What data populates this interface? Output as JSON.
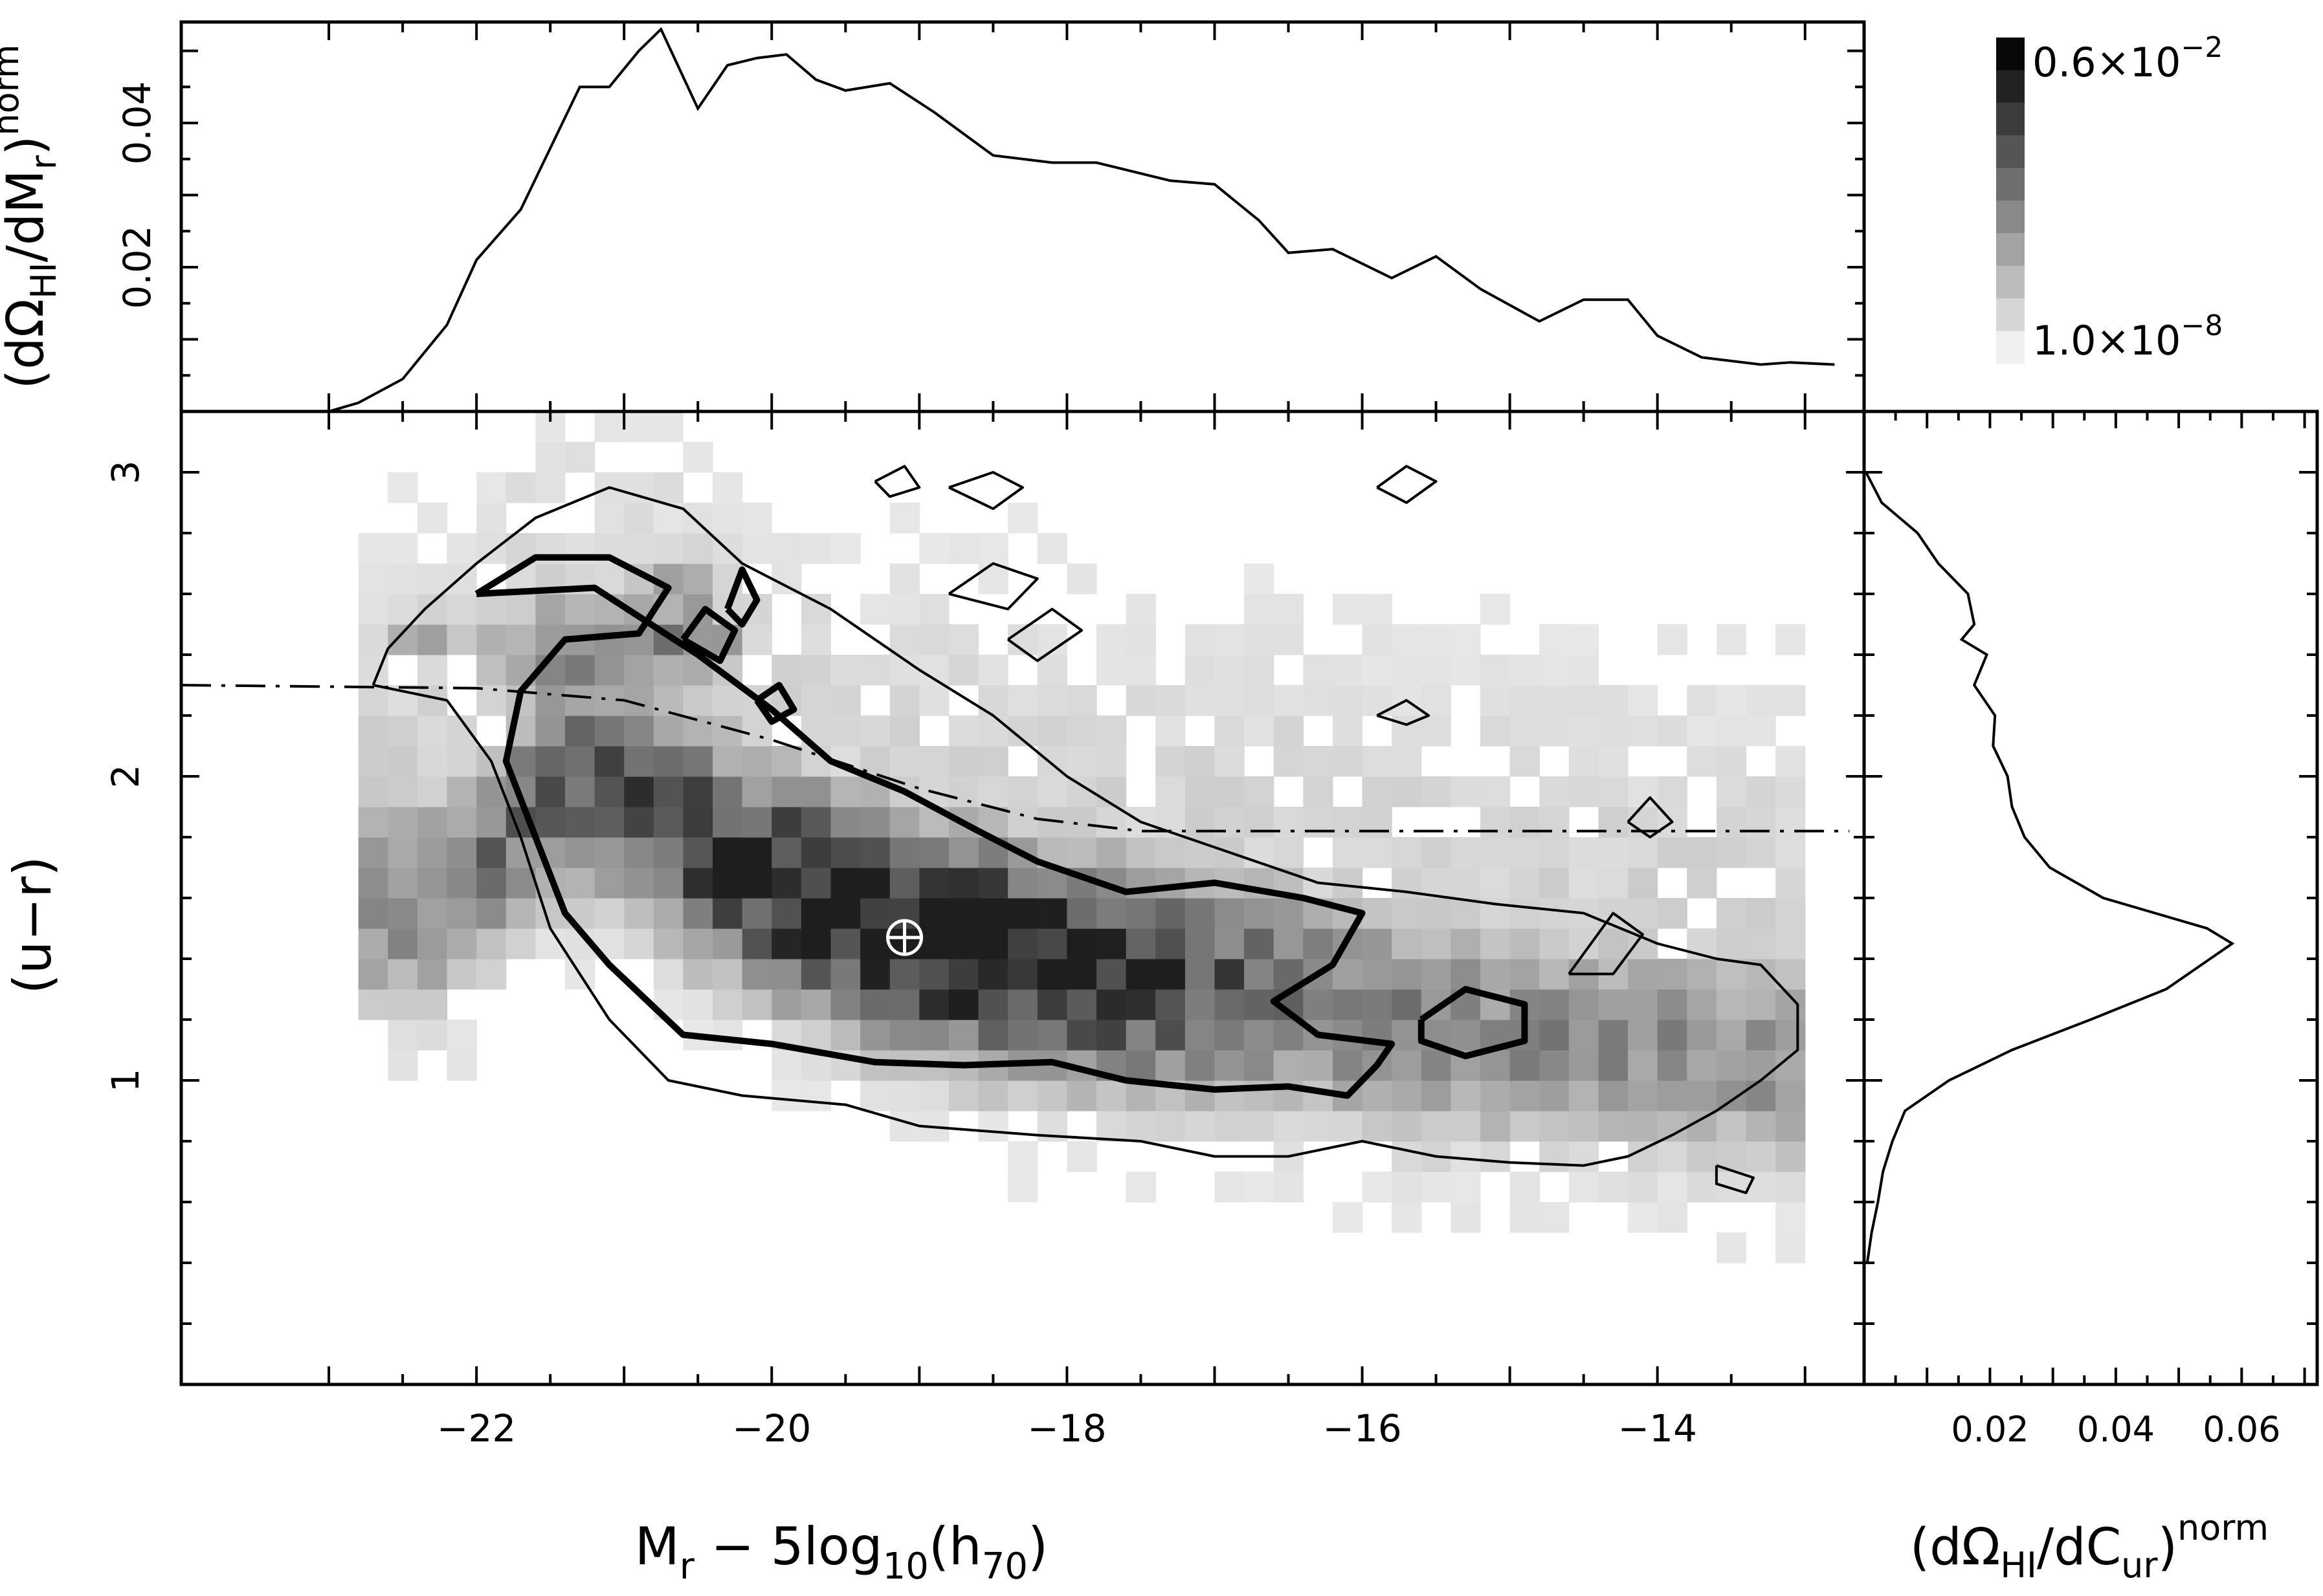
{
  "chart_data": [
    {
      "panel": "main",
      "type": "heatmap",
      "title": "",
      "xlabel_parts": {
        "m": "M",
        "m_sub": "r",
        "mid": " − 5log",
        "log_sub": "10",
        "h": "(h",
        "h_sub": "70",
        "close": ")"
      },
      "ylabel": "(u−r)",
      "xlim": [
        -24,
        -12.6
      ],
      "ylim": [
        0,
        3.2
      ],
      "xticks": [
        -22,
        -20,
        -18,
        -16,
        -14
      ],
      "xtick_labels": [
        "−22",
        "−20",
        "−18",
        "−16",
        "−14"
      ],
      "yticks": [
        1,
        2,
        3
      ],
      "ytick_labels": [
        "1",
        "2",
        "3"
      ],
      "colorbar": {
        "levels": 10,
        "max_label": "0.6×10",
        "max_exp": "−2",
        "min_label": "1.0×10",
        "min_exp": "−8"
      },
      "ridge": [
        [
          -22.2,
          1.6
        ],
        [
          -21.5,
          1.95
        ],
        [
          -21,
          1.98
        ],
        [
          -20.5,
          1.78
        ],
        [
          -20,
          1.65
        ],
        [
          -19.5,
          1.55
        ],
        [
          -19,
          1.48
        ],
        [
          -18.5,
          1.42
        ],
        [
          -18,
          1.38
        ],
        [
          -17.5,
          1.33
        ],
        [
          -17,
          1.3
        ],
        [
          -16.5,
          1.28
        ],
        [
          -16,
          1.22
        ],
        [
          -15.5,
          1.18
        ],
        [
          -15,
          1.15
        ],
        [
          -14.5,
          1.12
        ],
        [
          -14,
          1.1
        ],
        [
          -13.3,
          1.08
        ]
      ],
      "blobs": [
        {
          "x": -21.2,
          "y": 2.45,
          "sx": 0.9,
          "sy": 0.15,
          "a": 0.45
        },
        {
          "x": -20.6,
          "y": 2.65,
          "sx": 0.3,
          "sy": 0.1,
          "a": 0.35
        },
        {
          "x": -22.4,
          "y": 2.45,
          "sx": 0.25,
          "sy": 0.08,
          "a": 0.4
        },
        {
          "x": -20.5,
          "y": 2.45,
          "sx": 0.25,
          "sy": 0.08,
          "a": 0.3
        }
      ],
      "marker": {
        "x": -19.1,
        "y": 1.47,
        "symbol": "sun"
      },
      "divider_line": {
        "style": "dash-dot",
        "points": [
          [
            -24,
            2.3
          ],
          [
            -22,
            2.29
          ],
          [
            -21,
            2.25
          ],
          [
            -20,
            2.12
          ],
          [
            -19,
            1.96
          ],
          [
            -18.2,
            1.86
          ],
          [
            -17.5,
            1.82
          ],
          [
            -16,
            1.82
          ],
          [
            -12.7,
            1.82
          ]
        ]
      },
      "contour_thin": [
        {
          "points": [
            [
              -22.7,
              2.3
            ],
            [
              -22.2,
              2.25
            ],
            [
              -21.9,
              2.05
            ],
            [
              -21.7,
              1.8
            ],
            [
              -21.5,
              1.5
            ],
            [
              -21.1,
              1.2
            ],
            [
              -20.7,
              1.0
            ],
            [
              -20.2,
              0.95
            ],
            [
              -19.5,
              0.92
            ],
            [
              -19,
              0.85
            ],
            [
              -18.2,
              0.82
            ],
            [
              -17.5,
              0.8
            ],
            [
              -17,
              0.75
            ],
            [
              -16.5,
              0.75
            ],
            [
              -16,
              0.8
            ],
            [
              -15.5,
              0.75
            ],
            [
              -15,
              0.73
            ],
            [
              -14.5,
              0.72
            ],
            [
              -14.2,
              0.75
            ],
            [
              -13.9,
              0.82
            ],
            [
              -13.6,
              0.9
            ],
            [
              -13.3,
              1.0
            ],
            [
              -13.05,
              1.1
            ],
            [
              -13.05,
              1.25
            ],
            [
              -13.3,
              1.38
            ],
            [
              -13.6,
              1.4
            ],
            [
              -14,
              1.45
            ],
            [
              -14.5,
              1.55
            ],
            [
              -15.1,
              1.58
            ],
            [
              -15.7,
              1.62
            ],
            [
              -16.3,
              1.65
            ],
            [
              -16.9,
              1.75
            ],
            [
              -17.5,
              1.85
            ],
            [
              -18.0,
              2.0
            ],
            [
              -18.5,
              2.2
            ],
            [
              -19.0,
              2.35
            ],
            [
              -19.6,
              2.55
            ],
            [
              -20.2,
              2.7
            ],
            [
              -20.6,
              2.88
            ],
            [
              -21.1,
              2.95
            ],
            [
              -21.6,
              2.85
            ],
            [
              -22.0,
              2.7
            ],
            [
              -22.35,
              2.55
            ],
            [
              -22.6,
              2.42
            ],
            [
              -22.7,
              2.3
            ]
          ]
        },
        {
          "points": [
            [
              -15.9,
              2.95
            ],
            [
              -15.7,
              3.02
            ],
            [
              -15.5,
              2.97
            ],
            [
              -15.7,
              2.9
            ],
            [
              -15.9,
              2.95
            ]
          ]
        },
        {
          "points": [
            [
              -18.8,
              2.95
            ],
            [
              -18.5,
              3.0
            ],
            [
              -18.3,
              2.95
            ],
            [
              -18.5,
              2.88
            ],
            [
              -18.8,
              2.95
            ]
          ]
        },
        {
          "points": [
            [
              -19.3,
              2.97
            ],
            [
              -19.1,
              3.02
            ],
            [
              -19.0,
              2.95
            ],
            [
              -19.2,
              2.92
            ],
            [
              -19.3,
              2.97
            ]
          ]
        },
        {
          "points": [
            [
              -18.8,
              2.6
            ],
            [
              -18.5,
              2.7
            ],
            [
              -18.2,
              2.65
            ],
            [
              -18.4,
              2.55
            ],
            [
              -18.8,
              2.6
            ]
          ]
        },
        {
          "points": [
            [
              -18.4,
              2.45
            ],
            [
              -18.1,
              2.55
            ],
            [
              -17.9,
              2.48
            ],
            [
              -18.2,
              2.38
            ],
            [
              -18.4,
              2.45
            ]
          ]
        },
        {
          "points": [
            [
              -14.6,
              1.35
            ],
            [
              -14.3,
              1.55
            ],
            [
              -14.1,
              1.48
            ],
            [
              -14.3,
              1.35
            ],
            [
              -14.6,
              1.35
            ]
          ]
        },
        {
          "points": [
            [
              -14.2,
              1.85
            ],
            [
              -14.05,
              1.93
            ],
            [
              -13.9,
              1.85
            ],
            [
              -14.05,
              1.8
            ],
            [
              -14.2,
              1.85
            ]
          ]
        },
        {
          "points": [
            [
              -15.9,
              2.2
            ],
            [
              -15.7,
              2.25
            ],
            [
              -15.55,
              2.2
            ],
            [
              -15.7,
              2.17
            ],
            [
              -15.9,
              2.2
            ]
          ]
        },
        {
          "points": [
            [
              -13.6,
              0.72
            ],
            [
              -13.35,
              0.68
            ],
            [
              -13.4,
              0.63
            ],
            [
              -13.6,
              0.66
            ],
            [
              -13.6,
              0.72
            ]
          ]
        }
      ],
      "contour_thick": [
        {
          "points": [
            [
              -22.0,
              2.6
            ],
            [
              -21.6,
              2.72
            ],
            [
              -21.1,
              2.72
            ],
            [
              -20.7,
              2.62
            ],
            [
              -20.9,
              2.47
            ],
            [
              -21.4,
              2.45
            ],
            [
              -21.7,
              2.28
            ],
            [
              -21.8,
              2.05
            ],
            [
              -21.6,
              1.8
            ],
            [
              -21.4,
              1.55
            ],
            [
              -21.1,
              1.38
            ],
            [
              -20.6,
              1.15
            ],
            [
              -20.0,
              1.12
            ],
            [
              -19.3,
              1.06
            ],
            [
              -18.7,
              1.05
            ],
            [
              -18.1,
              1.06
            ],
            [
              -17.6,
              1.0
            ],
            [
              -17.0,
              0.97
            ],
            [
              -16.5,
              0.98
            ],
            [
              -16.1,
              0.95
            ],
            [
              -15.9,
              1.05
            ],
            [
              -15.8,
              1.12
            ],
            [
              -16.3,
              1.15
            ],
            [
              -16.6,
              1.26
            ],
            [
              -16.2,
              1.38
            ],
            [
              -16.0,
              1.55
            ],
            [
              -16.4,
              1.6
            ],
            [
              -17.0,
              1.65
            ],
            [
              -17.6,
              1.62
            ],
            [
              -18.2,
              1.72
            ],
            [
              -18.6,
              1.82
            ],
            [
              -19.1,
              1.95
            ],
            [
              -19.6,
              2.05
            ],
            [
              -20.0,
              2.22
            ],
            [
              -20.5,
              2.4
            ],
            [
              -21.2,
              2.62
            ],
            [
              -22.0,
              2.6
            ]
          ]
        },
        {
          "points": [
            [
              -15.6,
              1.2
            ],
            [
              -15.3,
              1.3
            ],
            [
              -14.9,
              1.25
            ],
            [
              -14.9,
              1.13
            ],
            [
              -15.3,
              1.08
            ],
            [
              -15.6,
              1.13
            ],
            [
              -15.6,
              1.2
            ]
          ]
        },
        {
          "points": [
            [
              -20.6,
              2.45
            ],
            [
              -20.45,
              2.55
            ],
            [
              -20.25,
              2.48
            ],
            [
              -20.35,
              2.38
            ],
            [
              -20.6,
              2.45
            ]
          ]
        },
        {
          "points": [
            [
              -20.3,
              2.55
            ],
            [
              -20.2,
              2.68
            ],
            [
              -20.1,
              2.58
            ],
            [
              -20.2,
              2.5
            ],
            [
              -20.3,
              2.55
            ]
          ]
        },
        {
          "points": [
            [
              -20.1,
              2.25
            ],
            [
              -19.95,
              2.3
            ],
            [
              -19.85,
              2.22
            ],
            [
              -20.0,
              2.18
            ],
            [
              -20.1,
              2.25
            ]
          ]
        }
      ]
    },
    {
      "panel": "top",
      "type": "line",
      "title": "",
      "ylabel_parts": {
        "pre": "(dΩ",
        "sub1": "HI",
        "mid": "/dM",
        "sub2": "r",
        "post": ")",
        "sup": "norm"
      },
      "ylim": [
        0,
        0.054
      ],
      "yticks": [
        0.02,
        0.04
      ],
      "ytick_labels": [
        "0.02",
        "0.04"
      ],
      "x": [
        -23,
        -22.8,
        -22.5,
        -22.2,
        -22,
        -21.7,
        -21.3,
        -21.1,
        -20.9,
        -20.75,
        -20.5,
        -20.3,
        -20.1,
        -19.9,
        -19.7,
        -19.5,
        -19.2,
        -18.9,
        -18.5,
        -18.1,
        -17.8,
        -17.3,
        -17,
        -16.7,
        -16.5,
        -16.2,
        -15.8,
        -15.5,
        -15.2,
        -14.8,
        -14.5,
        -14.2,
        -14,
        -13.7,
        -13.3,
        -13.1,
        -12.8
      ],
      "values": [
        0,
        0.0012,
        0.0045,
        0.012,
        0.021,
        0.028,
        0.045,
        0.045,
        0.05,
        0.053,
        0.042,
        0.048,
        0.049,
        0.0495,
        0.046,
        0.0445,
        0.0455,
        0.0415,
        0.0355,
        0.0345,
        0.0345,
        0.032,
        0.0315,
        0.0265,
        0.022,
        0.0225,
        0.0185,
        0.0215,
        0.017,
        0.0125,
        0.0155,
        0.0155,
        0.0105,
        0.0075,
        0.0065,
        0.0068,
        0.0065
      ]
    },
    {
      "panel": "right",
      "type": "line",
      "title": "",
      "xlabel_parts": {
        "pre": "(dΩ",
        "sub1": "HI",
        "mid": "/dC",
        "sub2": "ur",
        "post": ")",
        "sup": "norm"
      },
      "xlim": [
        0,
        0.072
      ],
      "xticks": [
        0.02,
        0.04,
        0.06
      ],
      "xtick_labels": [
        "0.02",
        "0.04",
        "0.06"
      ],
      "y": [
        3.0,
        2.9,
        2.8,
        2.7,
        2.6,
        2.5,
        2.45,
        2.4,
        2.3,
        2.2,
        2.1,
        2.0,
        1.9,
        1.8,
        1.7,
        1.6,
        1.5,
        1.45,
        1.4,
        1.3,
        1.2,
        1.1,
        1.0,
        0.9,
        0.8,
        0.7,
        0.6,
        0.5,
        0.4
      ],
      "values": [
        0.0003,
        0.0028,
        0.0085,
        0.0118,
        0.0165,
        0.0175,
        0.0155,
        0.0195,
        0.0175,
        0.0208,
        0.0205,
        0.0228,
        0.0235,
        0.0255,
        0.0295,
        0.038,
        0.0545,
        0.0585,
        0.055,
        0.048,
        0.036,
        0.0235,
        0.0135,
        0.0065,
        0.0045,
        0.003,
        0.0022,
        0.0012,
        0.0005
      ]
    }
  ]
}
